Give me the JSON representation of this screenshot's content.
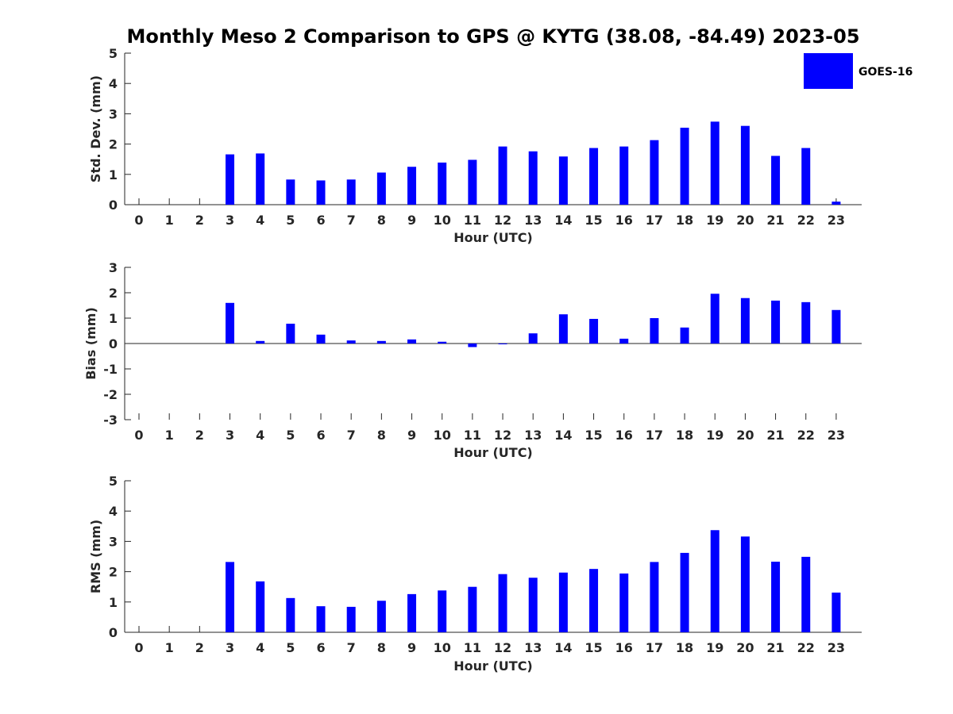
{
  "title": "Monthly Meso 2 Comparison to GPS @ KYTG (38.08, -84.49) 2023-05",
  "legend": {
    "label": "GOES-16",
    "color": "#0000ff",
    "placement": "top-right"
  },
  "chart_data": [
    {
      "type": "bar",
      "name": "std-dev",
      "title": "",
      "xlabel": "Hour (UTC)",
      "ylabel": "Std. Dev. (mm)",
      "ylim": [
        0,
        5
      ],
      "yticks": [
        0,
        1,
        2,
        3,
        4,
        5
      ],
      "categories": [
        "0",
        "1",
        "2",
        "3",
        "4",
        "5",
        "6",
        "7",
        "8",
        "9",
        "10",
        "11",
        "12",
        "13",
        "14",
        "15",
        "16",
        "17",
        "18",
        "19",
        "20",
        "21",
        "22",
        "23"
      ],
      "series": [
        {
          "name": "GOES-16",
          "color": "#0000ff",
          "values": [
            null,
            null,
            null,
            1.66,
            1.69,
            0.83,
            0.8,
            0.83,
            1.06,
            1.25,
            1.39,
            1.48,
            1.92,
            1.76,
            1.59,
            1.87,
            1.92,
            2.13,
            2.54,
            2.74,
            2.6,
            1.61,
            1.87,
            0.1
          ]
        }
      ]
    },
    {
      "type": "bar",
      "name": "bias",
      "title": "",
      "xlabel": "Hour (UTC)",
      "ylabel": "Bias (mm)",
      "ylim": [
        -3,
        3
      ],
      "yticks": [
        -3,
        -2,
        -1,
        0,
        1,
        2,
        3
      ],
      "categories": [
        "0",
        "1",
        "2",
        "3",
        "4",
        "5",
        "6",
        "7",
        "8",
        "9",
        "10",
        "11",
        "12",
        "13",
        "14",
        "15",
        "16",
        "17",
        "18",
        "19",
        "20",
        "21",
        "22",
        "23"
      ],
      "series": [
        {
          "name": "GOES-16",
          "color": "#0000ff",
          "values": [
            null,
            null,
            null,
            1.6,
            0.1,
            0.78,
            0.35,
            0.12,
            0.1,
            0.16,
            0.07,
            -0.14,
            -0.02,
            0.4,
            1.15,
            0.97,
            0.19,
            1.0,
            0.63,
            1.96,
            1.79,
            1.69,
            1.63,
            1.32
          ]
        }
      ]
    },
    {
      "type": "bar",
      "name": "rms",
      "title": "",
      "xlabel": "Hour (UTC)",
      "ylabel": "RMS (mm)",
      "ylim": [
        0,
        5
      ],
      "yticks": [
        0,
        1,
        2,
        3,
        4,
        5
      ],
      "categories": [
        "0",
        "1",
        "2",
        "3",
        "4",
        "5",
        "6",
        "7",
        "8",
        "9",
        "10",
        "11",
        "12",
        "13",
        "14",
        "15",
        "16",
        "17",
        "18",
        "19",
        "20",
        "21",
        "22",
        "23"
      ],
      "series": [
        {
          "name": "GOES-16",
          "color": "#0000ff",
          "values": [
            null,
            null,
            null,
            2.32,
            1.68,
            1.13,
            0.86,
            0.84,
            1.04,
            1.26,
            1.38,
            1.5,
            1.92,
            1.8,
            1.97,
            2.09,
            1.94,
            2.32,
            2.62,
            3.37,
            3.16,
            2.33,
            2.49,
            1.31
          ]
        }
      ]
    }
  ]
}
